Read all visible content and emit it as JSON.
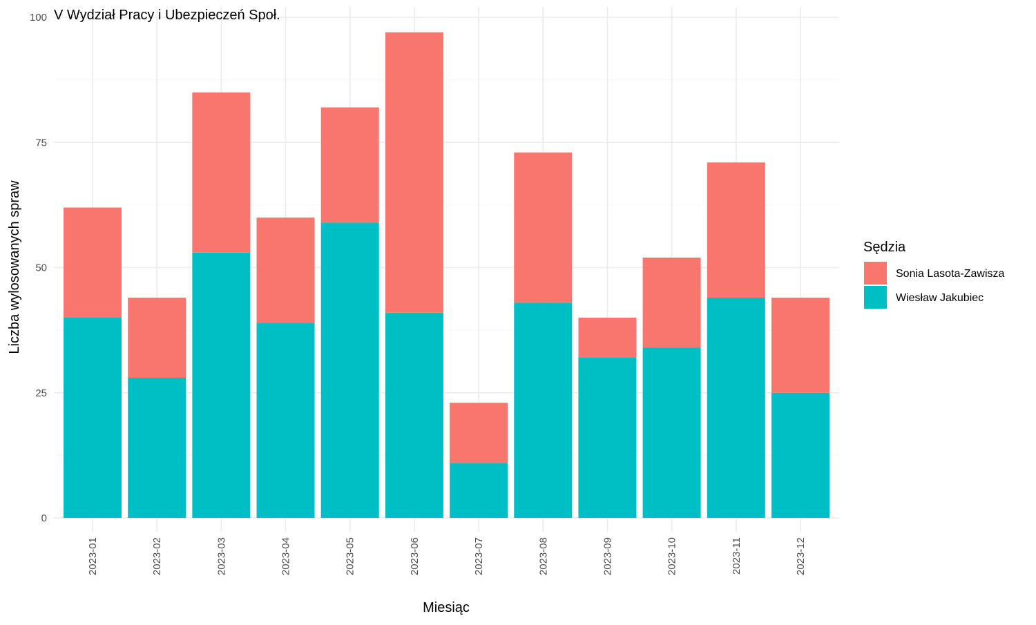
{
  "chart_data": {
    "type": "bar",
    "stacked": true,
    "title": "V Wydział Pracy i Ubezpieczeń Społ.",
    "xlabel": "Miesiąc",
    "ylabel": "Liczba wylosowanych spraw",
    "ylim": [
      0,
      100
    ],
    "yticks": [
      0,
      25,
      50,
      75,
      100
    ],
    "grid": true,
    "legend": {
      "title": "Sędzia",
      "position": "right"
    },
    "categories": [
      "2023-01",
      "2023-02",
      "2023-03",
      "2023-04",
      "2023-05",
      "2023-06",
      "2023-07",
      "2023-08",
      "2023-09",
      "2023-10",
      "2023-11",
      "2023-12"
    ],
    "series": [
      {
        "name": "Wiesław Jakubiec",
        "color": "#00BFC4",
        "values": [
          40,
          28,
          53,
          39,
          59,
          41,
          11,
          43,
          32,
          34,
          44,
          25
        ]
      },
      {
        "name": "Sonia Lasota-Zawisza",
        "color": "#F8766D",
        "values": [
          22,
          16,
          32,
          21,
          23,
          56,
          12,
          30,
          8,
          18,
          27,
          19
        ]
      }
    ]
  }
}
